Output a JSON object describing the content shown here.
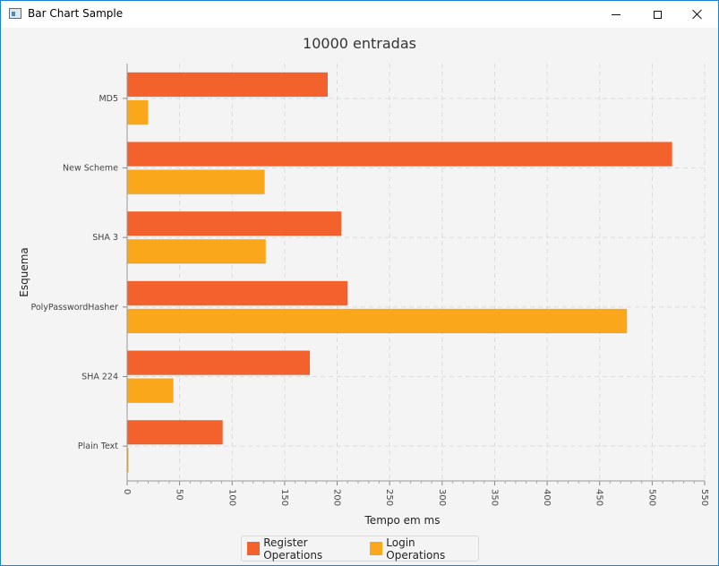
{
  "window": {
    "title": "Bar Chart Sample",
    "icons": [
      "app-window-icon",
      "minimize-icon",
      "maximize-icon",
      "close-icon"
    ]
  },
  "chart_data": {
    "type": "bar",
    "orientation": "horizontal",
    "title": "10000 entradas",
    "xlabel": "Tempo em ms",
    "ylabel": "Esquema",
    "xlim": [
      0,
      550
    ],
    "x_ticks": [
      "0",
      "50",
      "100",
      "150",
      "200",
      "250",
      "300",
      "350",
      "400",
      "450",
      "500",
      "550"
    ],
    "categories": [
      "MD5",
      "New Scheme",
      "SHA 3",
      "PolyPasswordHasher",
      "SHA 224",
      "Plain Text"
    ],
    "series": [
      {
        "name": "Register Operations",
        "color": "#f3622d",
        "values": [
          191,
          519,
          204,
          210,
          174,
          91
        ]
      },
      {
        "name": "Login Operations",
        "color": "#fba71b",
        "values": [
          20,
          131,
          132,
          476,
          44,
          1
        ]
      }
    ],
    "grid": true,
    "legend_position": "bottom"
  }
}
